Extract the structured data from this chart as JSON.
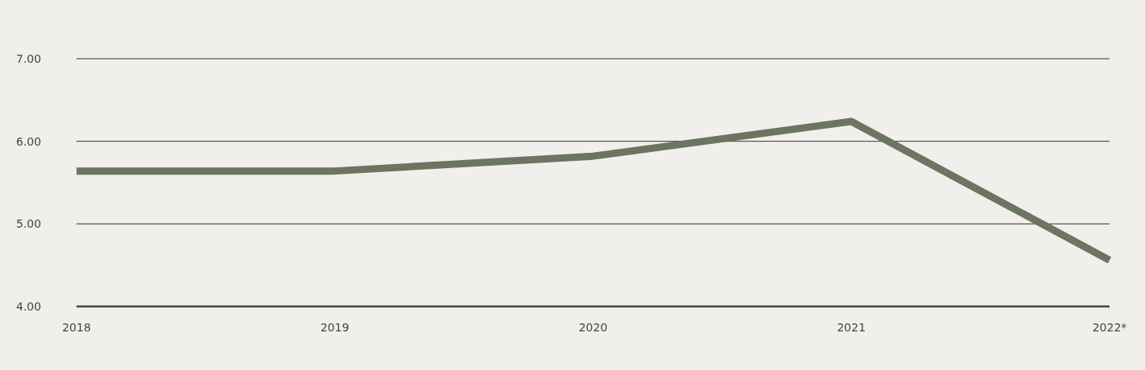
{
  "chart_data": {
    "type": "line",
    "categories": [
      "2018",
      "2019",
      "2020",
      "2021",
      "2022*"
    ],
    "series": [
      {
        "color": "#6b7561",
        "values": [
          5.64,
          5.64,
          5.82,
          6.24,
          4.56
        ]
      }
    ],
    "ylim": [
      4,
      7
    ],
    "yticks": [
      {
        "value": 4,
        "label": "4.00"
      },
      {
        "value": 5,
        "label": "5.00"
      },
      {
        "value": 6,
        "label": "6.00"
      },
      {
        "value": 7,
        "label": "7.00"
      }
    ],
    "grid": "y",
    "marker": "none",
    "line_style": "solid"
  }
}
